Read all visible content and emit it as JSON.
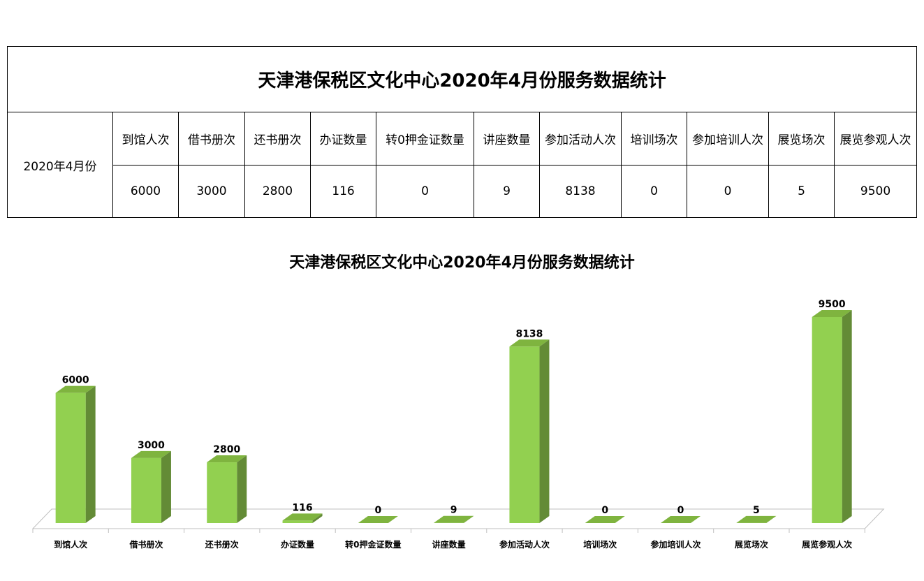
{
  "table": {
    "title": "天津港保税区文化中心2020年4月份服务数据统计",
    "row_label": "2020年4月份",
    "headers": [
      "到馆人次",
      "借书册次",
      "还书册次",
      "办证数量",
      "转0押金证数量",
      "讲座数量",
      "参加活动人次",
      "培训场次",
      "参加培训人次",
      "展览场次",
      "展览参观人次"
    ],
    "values": [
      "6000",
      "3000",
      "2800",
      "116",
      "0",
      "9",
      "8138",
      "0",
      "0",
      "5",
      "9500"
    ]
  },
  "colors": {
    "bar_front": "#92d050",
    "bar_side": "#638b36",
    "bar_top": "#7fb43f",
    "floor_line": "#bfbfbf"
  },
  "chart_data": {
    "type": "bar",
    "title": "天津港保税区文化中心2020年4月份服务数据统计",
    "categories": [
      "到馆人次",
      "借书册次",
      "还书册次",
      "办证数量",
      "转0押金证数量",
      "讲座数量",
      "参加活动人次",
      "培训场次",
      "参加培训人次",
      "展览场次",
      "展览参观人次"
    ],
    "values": [
      6000,
      3000,
      2800,
      116,
      0,
      9,
      8138,
      0,
      0,
      5,
      9500
    ],
    "data_labels": [
      "6000",
      "3000",
      "2800",
      "116",
      "0",
      "9",
      "8138",
      "0",
      "0",
      "5",
      "9500"
    ],
    "ylim": [
      0,
      9500
    ],
    "style": "3d",
    "grid": false,
    "legend": "none"
  }
}
